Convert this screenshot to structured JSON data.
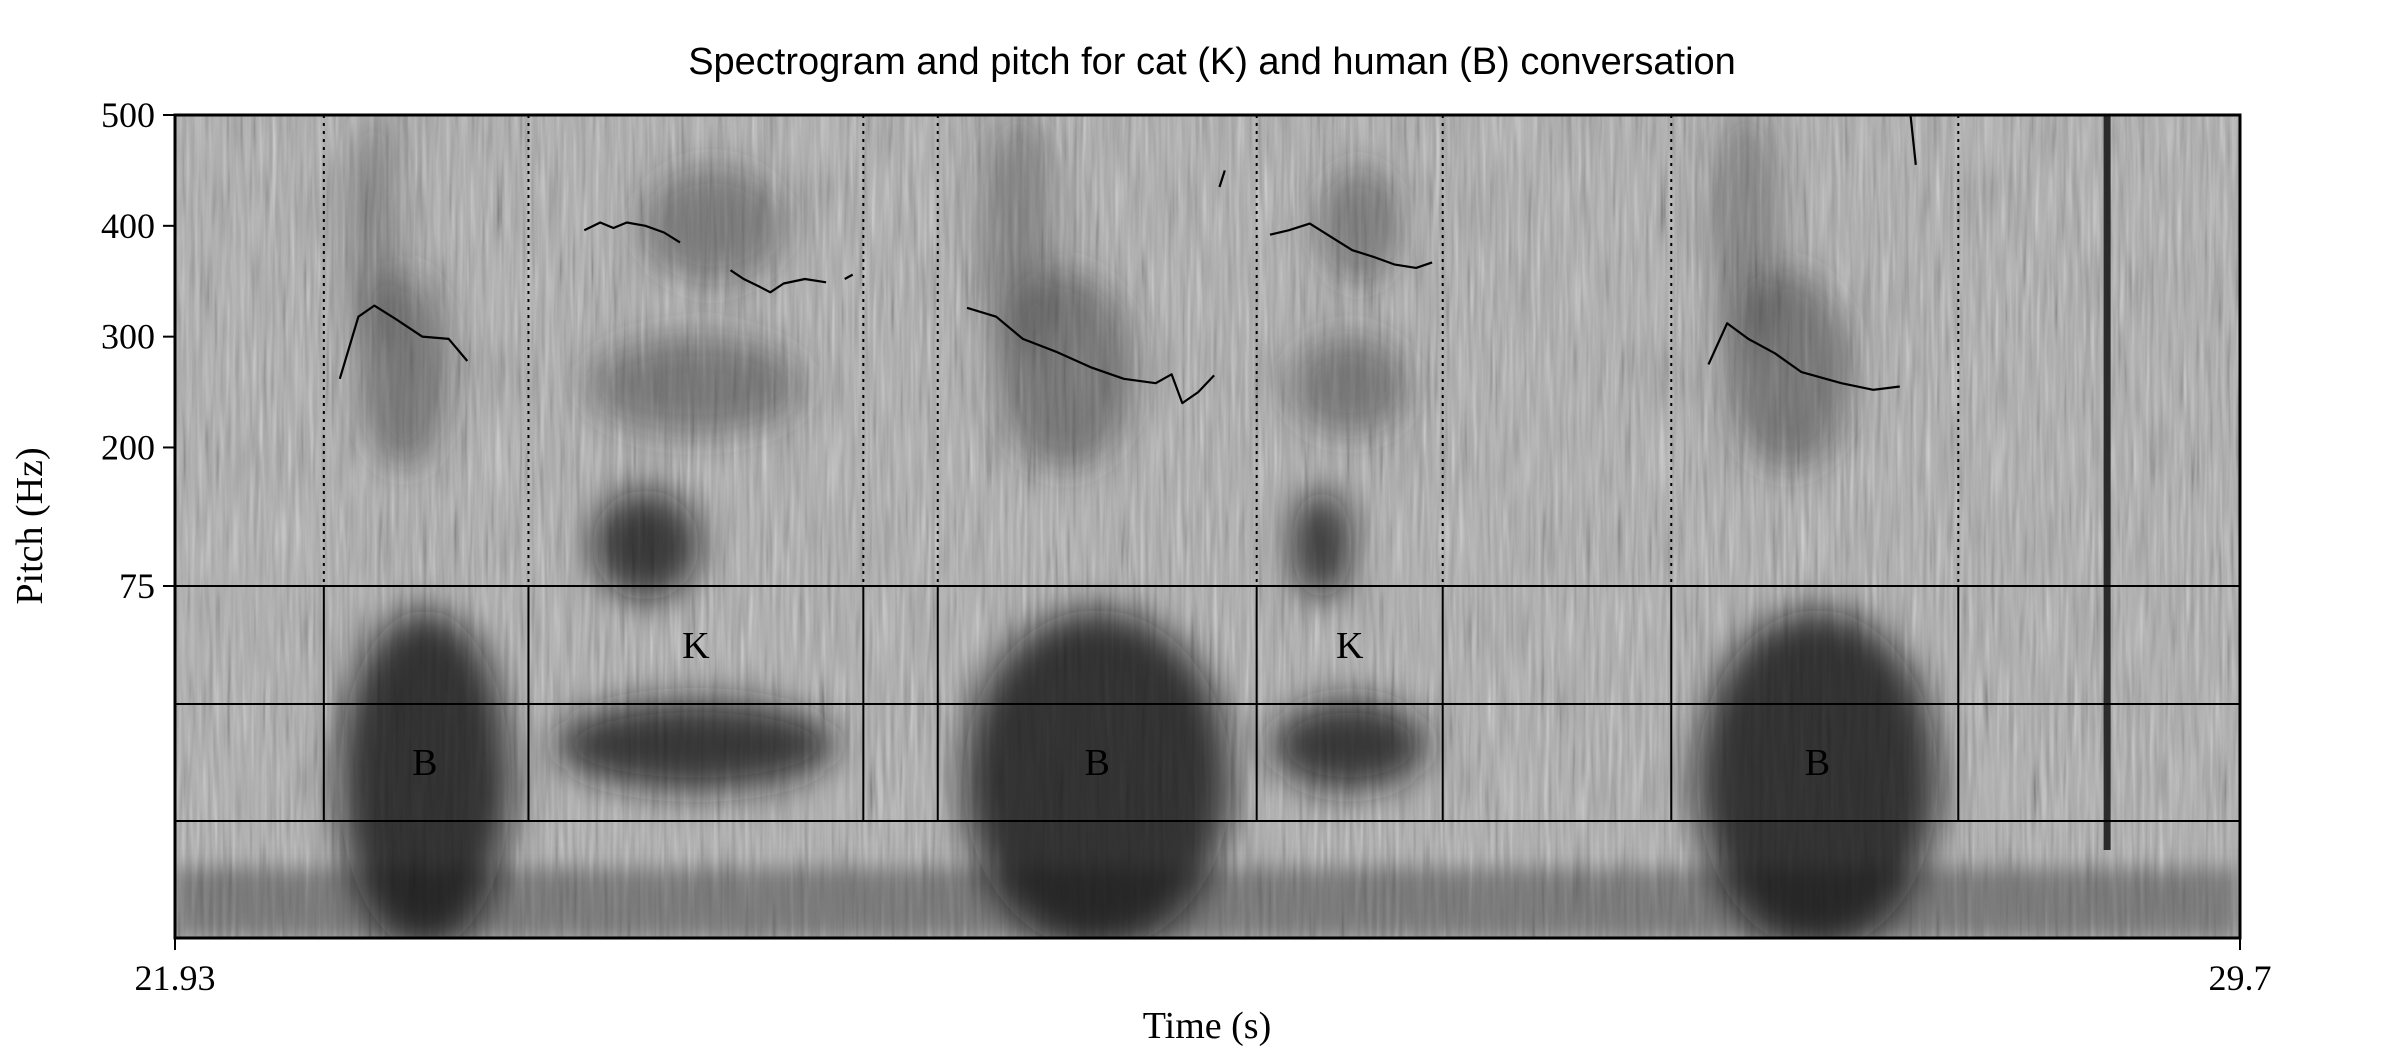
{
  "chart_data": {
    "type": "spectrogram",
    "title": "Spectrogram and pitch for cat (K) and human (B) conversation",
    "xlabel": "Time (s)",
    "ylabel": "Pitch (Hz)",
    "xlim": [
      21.93,
      29.7
    ],
    "x_tick_labels": [
      "21.93",
      "29.7"
    ],
    "pitch_scale": {
      "ylim": [
        75,
        500
      ],
      "ticks": [
        75,
        200,
        300,
        400,
        500
      ]
    },
    "grid": false,
    "legend": "none",
    "colors": {
      "spectrogram_light": "#bdbdbd",
      "spectrogram_dark": "#1a1a1a",
      "pitch_line": "#000000"
    },
    "boundaries": [
      22.49,
      23.26,
      24.52,
      24.8,
      26.0,
      26.7,
      27.56,
      28.64
    ],
    "dark_stripe_time": 29.2,
    "pitch_contours": [
      {
        "speaker": "B",
        "points": [
          [
            22.55,
            262
          ],
          [
            22.62,
            318
          ],
          [
            22.68,
            328
          ],
          [
            22.76,
            316
          ],
          [
            22.86,
            300
          ],
          [
            22.96,
            298
          ],
          [
            23.03,
            278
          ]
        ]
      },
      {
        "speaker": "K",
        "points": [
          [
            23.47,
            396
          ],
          [
            23.53,
            403
          ],
          [
            23.58,
            398
          ],
          [
            23.63,
            403
          ],
          [
            23.7,
            400
          ],
          [
            23.77,
            394
          ],
          [
            23.83,
            385
          ]
        ]
      },
      {
        "speaker": "K",
        "points": [
          [
            24.02,
            360
          ],
          [
            24.07,
            352
          ],
          [
            24.13,
            345
          ],
          [
            24.17,
            340
          ],
          [
            24.22,
            348
          ],
          [
            24.3,
            352
          ],
          [
            24.38,
            349
          ]
        ]
      },
      {
        "speaker": "K",
        "points": [
          [
            24.45,
            352
          ],
          [
            24.48,
            356
          ]
        ]
      },
      {
        "speaker": "B",
        "points": [
          [
            24.91,
            326
          ],
          [
            25.02,
            318
          ],
          [
            25.12,
            298
          ],
          [
            25.25,
            286
          ],
          [
            25.38,
            272
          ],
          [
            25.5,
            262
          ],
          [
            25.62,
            258
          ],
          [
            25.68,
            266
          ],
          [
            25.72,
            240
          ],
          [
            25.78,
            250
          ],
          [
            25.84,
            265
          ]
        ]
      },
      {
        "speaker": "cursor",
        "points": [
          [
            25.86,
            435
          ],
          [
            25.88,
            450
          ]
        ]
      },
      {
        "speaker": "K",
        "points": [
          [
            26.05,
            392
          ],
          [
            26.12,
            396
          ],
          [
            26.2,
            402
          ],
          [
            26.28,
            390
          ],
          [
            26.36,
            378
          ],
          [
            26.44,
            372
          ],
          [
            26.52,
            365
          ],
          [
            26.6,
            362
          ],
          [
            26.66,
            367
          ]
        ]
      },
      {
        "speaker": "B",
        "points": [
          [
            27.7,
            275
          ],
          [
            27.77,
            312
          ],
          [
            27.85,
            298
          ],
          [
            27.95,
            285
          ],
          [
            28.05,
            268
          ],
          [
            28.2,
            258
          ],
          [
            28.32,
            252
          ],
          [
            28.42,
            255
          ]
        ]
      },
      {
        "speaker": "cursor",
        "points": [
          [
            28.46,
            500
          ],
          [
            28.48,
            455
          ]
        ]
      }
    ],
    "tiers": [
      {
        "intervals": [
          {
            "label": "K",
            "t": 23.89
          },
          {
            "label": "K",
            "t": 26.35
          }
        ]
      },
      {
        "intervals": [
          {
            "label": "B",
            "t": 22.87
          },
          {
            "label": "B",
            "t": 25.4
          },
          {
            "label": "B",
            "t": 28.11
          }
        ]
      }
    ]
  }
}
